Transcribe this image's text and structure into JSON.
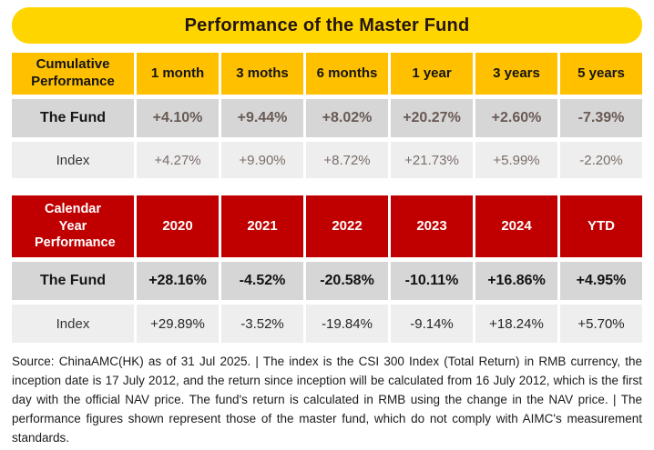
{
  "title": "Performance of the Master Fund",
  "colors": {
    "title_bar_bg": "#FFD500",
    "title_text": "#241511",
    "cumulative_header_bg": "#FFC000",
    "calendar_header_bg": "#C00000",
    "fund_row_bg": "#d6d6d6",
    "index_row_bg": "#eeeeee",
    "cumulative_value_text": "#695a55"
  },
  "cumulative": {
    "row_header": "Cumulative Performance",
    "columns": [
      "1 month",
      "3 moths",
      "6 months",
      "1 year",
      "3 years",
      "5 years"
    ],
    "rows": [
      {
        "label": "The Fund",
        "values": [
          "+4.10%",
          "+9.44%",
          "+8.02%",
          "+20.27%",
          "+2.60%",
          "-7.39%"
        ]
      },
      {
        "label": "Index",
        "values": [
          "+4.27%",
          "+9.90%",
          "+8.72%",
          "+21.73%",
          "+5.99%",
          "-2.20%"
        ]
      }
    ]
  },
  "calendar": {
    "row_header": "Calendar Year Performance",
    "columns": [
      "2020",
      "2021",
      "2022",
      "2023",
      "2024",
      "YTD"
    ],
    "rows": [
      {
        "label": "The Fund",
        "values": [
          "+28.16%",
          "-4.52%",
          "-20.58%",
          "-10.11%",
          "+16.86%",
          "+4.95%"
        ]
      },
      {
        "label": "Index",
        "values": [
          "+29.89%",
          "-3.52%",
          "-19.84%",
          "-9.14%",
          "+18.24%",
          "+5.70%"
        ]
      }
    ]
  },
  "footnote": "Source: ChinaAMC(HK) as of 31 Jul 2025. | The index is the CSI 300 Index (Total Return) in RMB currency, the inception date is 17 July 2012, and the return since inception will be calculated from 16 July 2012, which is the first day with the official NAV price. The fund's return is calculated in RMB using the change in the NAV price. | The performance figures shown represent those of the master fund, which do not comply with AIMC's measurement standards."
}
